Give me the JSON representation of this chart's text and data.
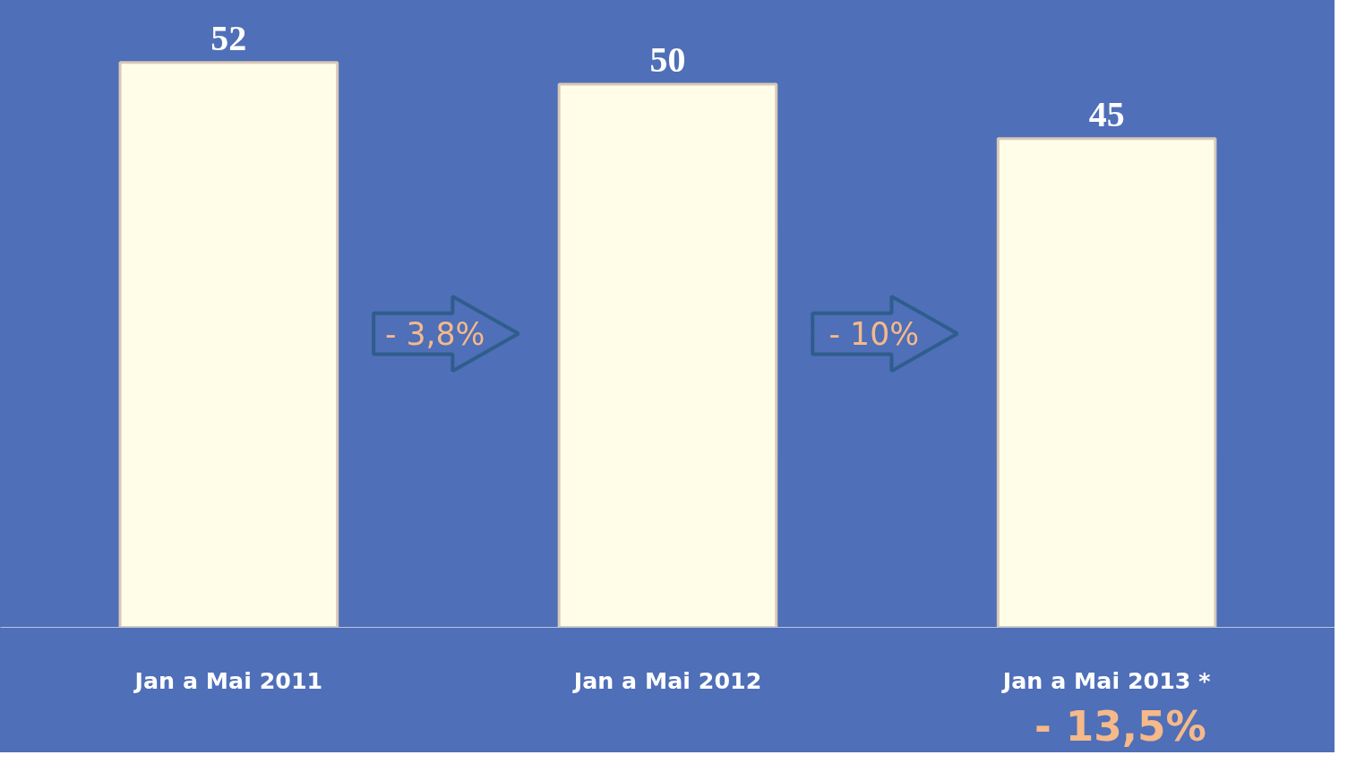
{
  "chart_data": {
    "type": "bar",
    "categories": [
      "Jan a Mai 2011",
      "Jan a Mai 2012",
      "Jan a Mai 2013 *"
    ],
    "values": [
      52,
      50,
      45
    ],
    "color": "#fffde8",
    "data_labels": true,
    "grid": false,
    "annotations": [
      "- 3,8%",
      "- 10%",
      "- 13,5%"
    ]
  }
}
